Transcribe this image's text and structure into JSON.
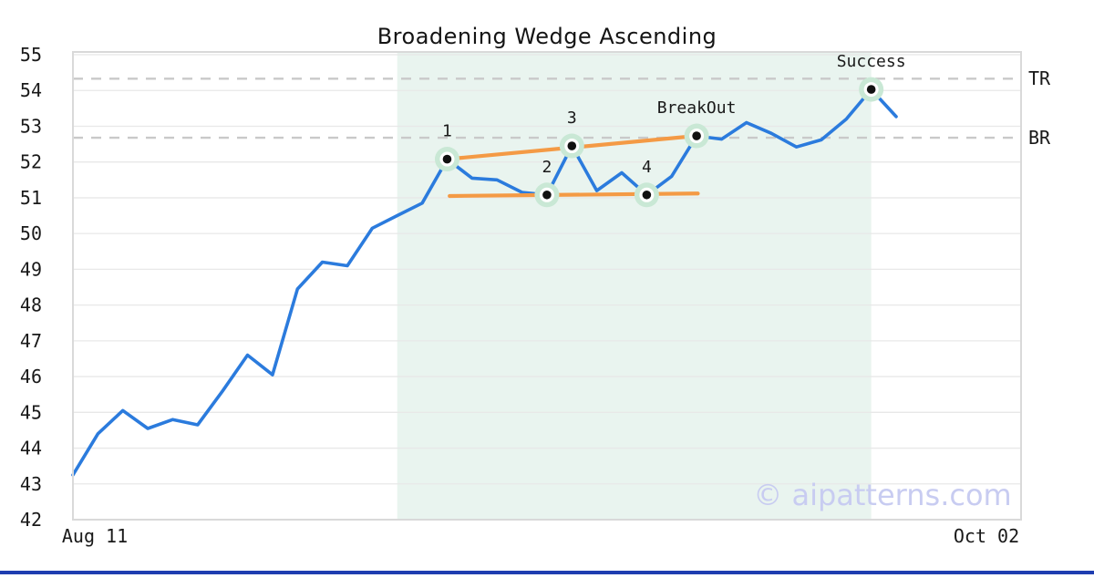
{
  "page": {
    "title": "Broadening Wedge Ascending",
    "watermark": "© aipatterns.com"
  },
  "chart_data": {
    "type": "line",
    "title": "Broadening Wedge Ascending",
    "grid": true,
    "legend": false,
    "x_axis": {
      "labels": [
        "Aug 11",
        "Oct 02"
      ]
    },
    "y_axis": {
      "ticks": [
        42,
        43,
        44,
        45,
        46,
        47,
        48,
        49,
        50,
        51,
        52,
        53,
        54,
        55
      ],
      "range": [
        42,
        55.1
      ]
    },
    "series": [
      {
        "name": "price",
        "values": [
          43.25,
          44.4,
          45.05,
          44.55,
          44.8,
          44.65,
          45.6,
          46.6,
          46.05,
          48.45,
          49.2,
          49.1,
          50.15,
          50.5,
          50.85,
          52.08,
          51.55,
          51.5,
          51.15,
          51.08,
          52.45,
          51.2,
          51.7,
          51.08,
          51.6,
          52.73,
          52.64,
          53.1,
          52.8,
          52.42,
          52.62,
          53.2,
          54.03,
          53.27
        ]
      }
    ],
    "levels": [
      {
        "label": "TR",
        "value": 54.33
      },
      {
        "label": "BR",
        "value": 52.68
      }
    ],
    "trendlines": [
      {
        "name": "upper",
        "from_index": 15,
        "from_value": 52.08,
        "to_index": 25,
        "to_value": 52.73
      },
      {
        "name": "lower",
        "from_index": 15.1,
        "from_value": 51.05,
        "to_index": 25.05,
        "to_value": 51.12
      }
    ],
    "pattern_region": {
      "from_index": 13,
      "to_index": 32
    },
    "annotations": [
      {
        "index": 15,
        "label": "1"
      },
      {
        "index": 19,
        "label": "2"
      },
      {
        "index": 20,
        "label": "3"
      },
      {
        "index": 23,
        "label": "4"
      },
      {
        "index": 25,
        "label": "BreakOut"
      },
      {
        "index": 32,
        "label": "Success"
      }
    ],
    "colors": {
      "line": "#2b7bdd",
      "trend": "#f49a45",
      "region": "#e9f4ef",
      "marker_halo": "#c9e8d5",
      "marker_dot": "#111111",
      "dashed_level": "#c9c9c9",
      "grid": "#e8e8e8",
      "border": "#d9d9d9",
      "bottom_bar": "#1e3db0",
      "watermark": "#c8ccf1"
    }
  }
}
